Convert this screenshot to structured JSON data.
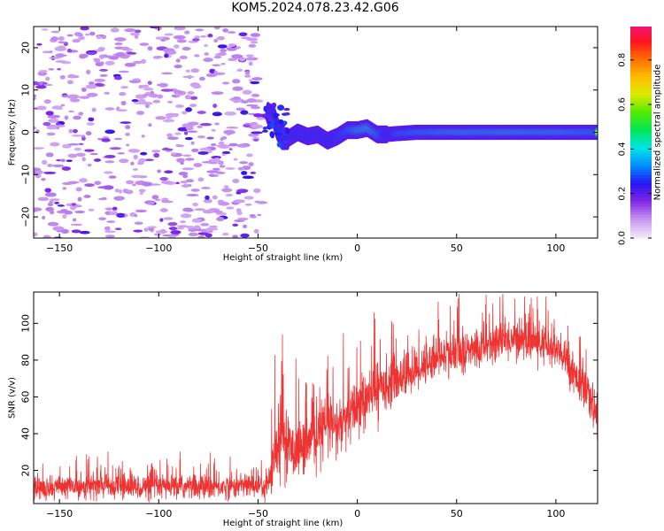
{
  "figure": {
    "title": "KOM5.2024.078.23.42.G06"
  },
  "chart_data": [
    {
      "type": "heatmap",
      "xlabel": "Height of straight line (km)",
      "ylabel": "Frequency (Hz)",
      "xlim": [
        -163,
        121
      ],
      "ylim": [
        -25,
        25
      ],
      "x_ticks": [
        -150,
        -100,
        -50,
        0,
        50,
        100
      ],
      "y_ticks": [
        -20,
        -10,
        0,
        10,
        20
      ],
      "noise_region_x": [
        -163,
        -48
      ],
      "trace": {
        "x": [
          -45,
          -42,
          -40,
          -38,
          -35,
          -30,
          -25,
          -20,
          -15,
          -10,
          -5,
          0,
          5,
          10,
          15,
          20,
          30,
          50,
          80,
          100,
          121
        ],
        "y": [
          4.5,
          3.5,
          0.5,
          -1.5,
          -1.5,
          0.0,
          -1.0,
          -0.5,
          -2.0,
          -1.0,
          0.5,
          0.5,
          1.0,
          -0.5,
          -0.5,
          -0.3,
          0.0,
          0.0,
          0.0,
          0.0,
          0.0
        ],
        "amplitude": [
          0.15,
          0.2,
          0.2,
          0.25,
          0.3,
          0.35,
          0.35,
          0.4,
          0.4,
          0.45,
          0.5,
          0.6,
          0.65,
          0.55,
          0.4,
          0.5,
          0.55,
          0.6,
          0.62,
          0.6,
          0.55
        ]
      },
      "colorbar": {
        "label": "Normalized spectral amplitude",
        "range": [
          0.0,
          0.95
        ],
        "ticks": [
          0.0,
          0.2,
          0.4,
          0.6,
          0.8
        ]
      }
    },
    {
      "type": "line",
      "xlabel": "Height of straight line (km)",
      "ylabel": "SNR (v/v)",
      "xlim": [
        -163,
        121
      ],
      "ylim": [
        2,
        117
      ],
      "x_ticks": [
        -150,
        -100,
        -50,
        0,
        50,
        100
      ],
      "y_ticks": [
        20,
        40,
        60,
        80,
        100
      ],
      "color": "#ee3333",
      "series": [
        {
          "x": [
            -163,
            -150,
            -130,
            -110,
            -90,
            -70,
            -55,
            -45,
            -42,
            -38,
            -35,
            -30,
            -25,
            -20,
            -15,
            -10,
            -5,
            0,
            5,
            10,
            20,
            30,
            40,
            50,
            60,
            70,
            80,
            90,
            100,
            105,
            110,
            115,
            121
          ],
          "y": [
            10,
            11,
            12,
            11,
            11,
            11,
            12,
            12,
            25,
            40,
            32,
            32,
            34,
            40,
            45,
            43,
            48,
            55,
            58,
            65,
            70,
            75,
            82,
            83,
            86,
            90,
            92,
            90,
            85,
            80,
            72,
            62,
            50
          ],
          "spread": [
            6,
            6,
            6,
            6,
            6,
            6,
            6,
            7,
            15,
            18,
            15,
            14,
            14,
            15,
            16,
            15,
            15,
            15,
            14,
            13,
            12,
            11,
            10,
            10,
            10,
            10,
            10,
            10,
            10,
            10,
            10,
            10,
            9
          ]
        }
      ]
    }
  ]
}
